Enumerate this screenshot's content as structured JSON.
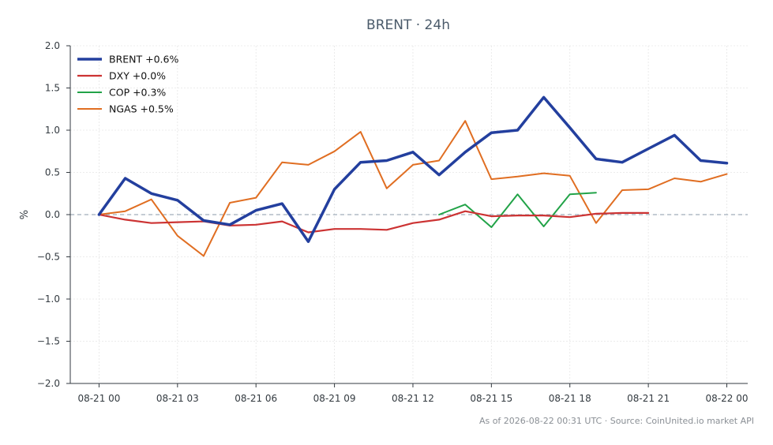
{
  "chart_data": {
    "type": "line",
    "title": "BRENT · 24h",
    "xlabel": "",
    "ylabel": "%",
    "ylim": [
      -2.0,
      2.0
    ],
    "xlim": [
      -1.1,
      24.8
    ],
    "yticks": [
      2.0,
      1.5,
      1.0,
      0.5,
      0.0,
      -0.5,
      -1.0,
      -1.5,
      -2.0
    ],
    "ytick_labels": [
      "2.0",
      "1.5",
      "1.0",
      "0.5",
      "0.0",
      "−0.5",
      "−1.0",
      "−1.5",
      "−2.0"
    ],
    "xticks": [
      0,
      3,
      6,
      9,
      12,
      15,
      18,
      21,
      24
    ],
    "xtick_labels": [
      "08-21 00",
      "08-21 03",
      "08-21 06",
      "08-21 09",
      "08-21 12",
      "08-21 15",
      "08-21 18",
      "08-21 21",
      "08-22 00"
    ],
    "x_unit": "hours since 08-21 00",
    "grid": true,
    "zero_line": true,
    "legend_position": "top-left",
    "series": [
      {
        "name": "BRENT +0.6%",
        "color": "#233f9e",
        "width": 3.5,
        "x": [
          0,
          1,
          2,
          3,
          4,
          5,
          6,
          7,
          8,
          9,
          10,
          11,
          12,
          13,
          14,
          15,
          16,
          17,
          18,
          19,
          20,
          21,
          22,
          23,
          24
        ],
        "values": [
          0.0,
          0.43,
          0.25,
          0.17,
          -0.07,
          -0.12,
          0.05,
          0.13,
          -0.32,
          0.3,
          0.62,
          0.64,
          0.74,
          0.47,
          0.74,
          0.97,
          1.0,
          1.39,
          1.03,
          0.66,
          0.62,
          0.78,
          0.94,
          0.64,
          0.61
        ]
      },
      {
        "name": "DXY +0.0%",
        "color": "#cc3333",
        "width": 2.2,
        "x": [
          0,
          1,
          2,
          3,
          4,
          5,
          6,
          7,
          8,
          9,
          10,
          11,
          12,
          13,
          14,
          15,
          16,
          17,
          18,
          19,
          20,
          21
        ],
        "values": [
          0.0,
          -0.06,
          -0.1,
          -0.09,
          -0.08,
          -0.13,
          -0.12,
          -0.08,
          -0.21,
          -0.17,
          -0.17,
          -0.18,
          -0.1,
          -0.06,
          0.04,
          -0.02,
          -0.01,
          -0.01,
          -0.03,
          0.01,
          0.02,
          0.02
        ]
      },
      {
        "name": "COP +0.3%",
        "color": "#22a348",
        "width": 2.0,
        "x": [
          13,
          14,
          15,
          16,
          17,
          18,
          19
        ],
        "values": [
          0.0,
          0.12,
          -0.15,
          0.24,
          -0.14,
          0.24,
          0.26
        ]
      },
      {
        "name": "NGAS +0.5%",
        "color": "#e06e22",
        "width": 2.0,
        "x": [
          0,
          1,
          2,
          3,
          4,
          5,
          6,
          7,
          8,
          9,
          10,
          11,
          12,
          13,
          14,
          15,
          16,
          17,
          18,
          19,
          20,
          21,
          22,
          23,
          24
        ],
        "values": [
          0.0,
          0.04,
          0.18,
          -0.25,
          -0.49,
          0.14,
          0.2,
          0.62,
          0.59,
          0.75,
          0.98,
          0.31,
          0.59,
          0.64,
          1.11,
          0.42,
          0.45,
          0.49,
          0.46,
          -0.1,
          0.29,
          0.3,
          0.43,
          0.39,
          0.48
        ]
      }
    ],
    "footer": "As of 2026-08-22 00:31 UTC · Source: CoinUnited.io market API"
  }
}
